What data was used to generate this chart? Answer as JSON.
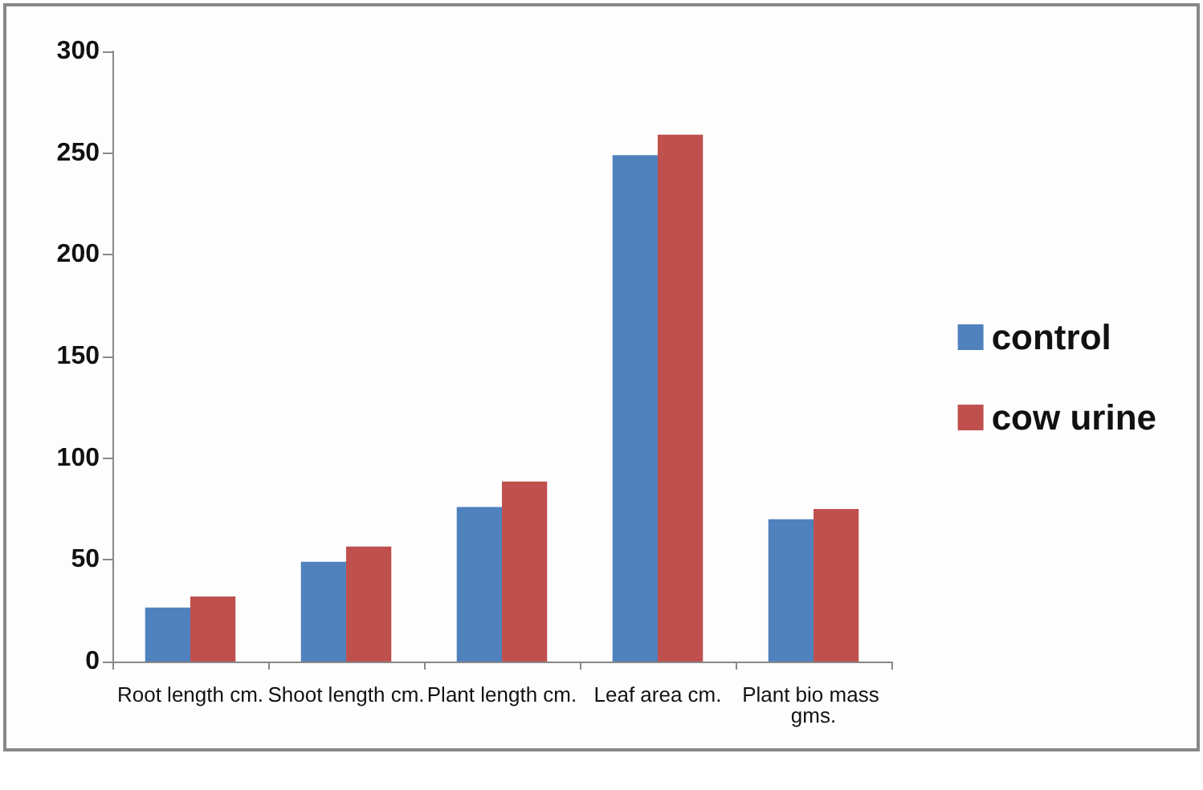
{
  "chart_data": {
    "type": "bar",
    "categories": [
      "Root length cm.",
      "Shoot length cm.",
      "Plant length cm.",
      "Leaf area cm.",
      "Plant bio mass gms."
    ],
    "series": [
      {
        "name": "control",
        "color": "#4f81bd",
        "values": [
          26.5,
          49,
          76,
          249,
          70
        ]
      },
      {
        "name": "cow urine",
        "color": "#c0504d",
        "values": [
          32,
          56.5,
          88.5,
          259,
          75
        ]
      }
    ],
    "ylim": [
      0,
      300
    ],
    "yticks": [
      0,
      50,
      100,
      150,
      200,
      250,
      300
    ],
    "grid": false,
    "legend": "right"
  }
}
